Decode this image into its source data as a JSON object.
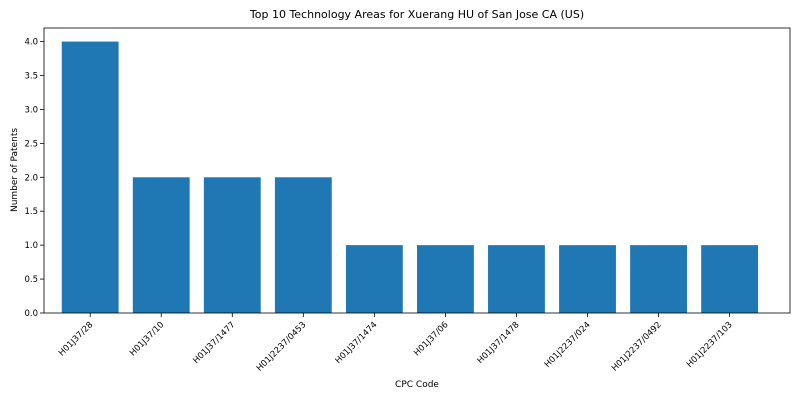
{
  "chart_data": {
    "type": "bar",
    "title": "Top 10 Technology Areas for Xuerang HU of San Jose CA (US)",
    "xlabel": "CPC Code",
    "ylabel": "Number of Patents",
    "categories": [
      "H01J37/28",
      "H01J37/10",
      "H01J37/1477",
      "H01J2237/0453",
      "H01J37/1474",
      "H01J37/06",
      "H01J37/1478",
      "H01J2237/024",
      "H01J2237/0492",
      "H01J2237/103"
    ],
    "values": [
      4,
      2,
      2,
      2,
      1,
      1,
      1,
      1,
      1,
      1
    ],
    "ylim": [
      0,
      4.2
    ],
    "yticks": [
      "0.0",
      "0.5",
      "1.0",
      "1.5",
      "2.0",
      "2.5",
      "3.0",
      "3.5",
      "4.0"
    ],
    "bar_color": "#1f77b4",
    "grid": false
  }
}
